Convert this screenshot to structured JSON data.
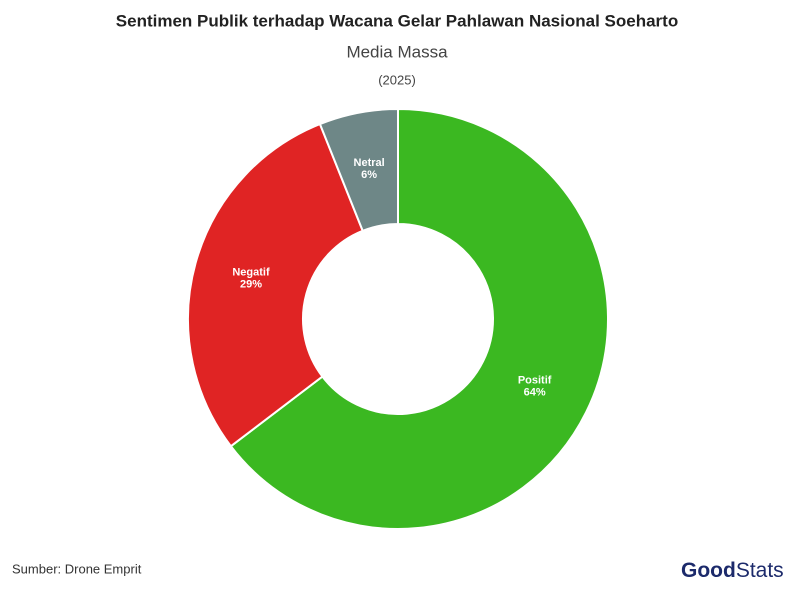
{
  "chart_data": {
    "type": "donut",
    "title": "Sentimen Publik terhadap Wacana Gelar Pahlawan Nasional Soeharto",
    "subtitle": "Media Massa",
    "period": "(2025)",
    "categories": [
      "Positif",
      "Negatif",
      "Netral"
    ],
    "values": [
      64,
      29,
      6
    ],
    "value_labels": [
      "64%",
      "29%",
      "6%"
    ],
    "colors": [
      "#3bb821",
      "#e02424",
      "#6e8787"
    ],
    "source": "Sumber: Drone Emprit",
    "brand": [
      "Good",
      "Stats"
    ]
  }
}
